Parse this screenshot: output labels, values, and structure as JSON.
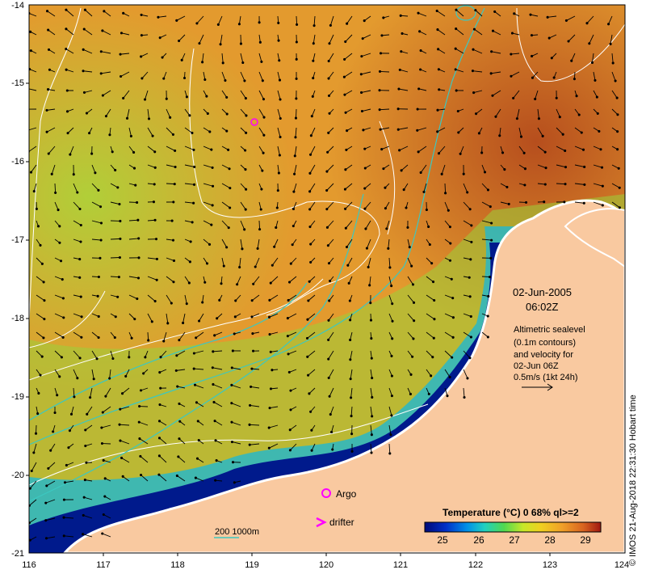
{
  "map": {
    "date": "02-Jun-2005",
    "time": "06:02Z",
    "legend_lines": [
      "Altimetric sealevel",
      "(0.1m contours)",
      "and velocity for",
      "02-Jun 06Z",
      "0.5m/s (1kt 24h)"
    ],
    "argo_label": "Argo",
    "drifter_label": "drifter",
    "depth_label": "200  1000m",
    "colorbar_title": "Temperature (°C) 0 68% ql>=2",
    "colorbar_ticks": [
      "25",
      "26",
      "27",
      "28",
      "29"
    ],
    "credit": "© IMOS 21-Aug-2018 22:31:30 Hobart time",
    "lon_ticks": [
      "116",
      "117",
      "118",
      "119",
      "120",
      "121",
      "122",
      "123",
      "124"
    ],
    "lat_ticks": [
      "-14",
      "-15",
      "-16",
      "-17",
      "-18",
      "-19",
      "-20",
      "-21"
    ],
    "colors": {
      "land": "#f9c9a0",
      "deep_blue": "#001a8c",
      "warm_sst": "#e39a2e",
      "hot_sst": "#b4501e",
      "green_sst": "#9ad23a",
      "contour_200": "#3cc8c0",
      "argo": "#ff00ff"
    }
  }
}
